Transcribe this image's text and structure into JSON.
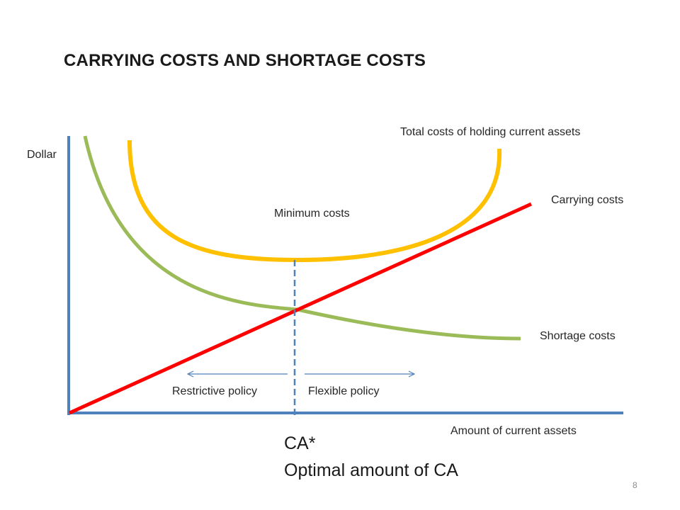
{
  "title": "CARRYING COSTS AND SHORTAGE COSTS",
  "axes": {
    "y_label": "Dollar",
    "x_label": "Amount of current assets"
  },
  "curves": {
    "total_label": "Total costs of holding current assets",
    "carrying_label": "Carrying costs",
    "shortage_label": "Shortage costs"
  },
  "minimum_label": "Minimum costs",
  "policies": {
    "restrictive": "Restrictive policy",
    "flexible": "Flexible policy"
  },
  "optimum": {
    "symbol": "CA*",
    "caption": "Optimal amount of CA"
  },
  "page_number": "8",
  "colors": {
    "axis": "#4f81bd",
    "total_cost_curve": "#ffc000",
    "carrying_cost_line": "#ff0000",
    "shortage_cost_curve": "#9bbb59",
    "policy_arrow": "#4f81bd"
  }
}
